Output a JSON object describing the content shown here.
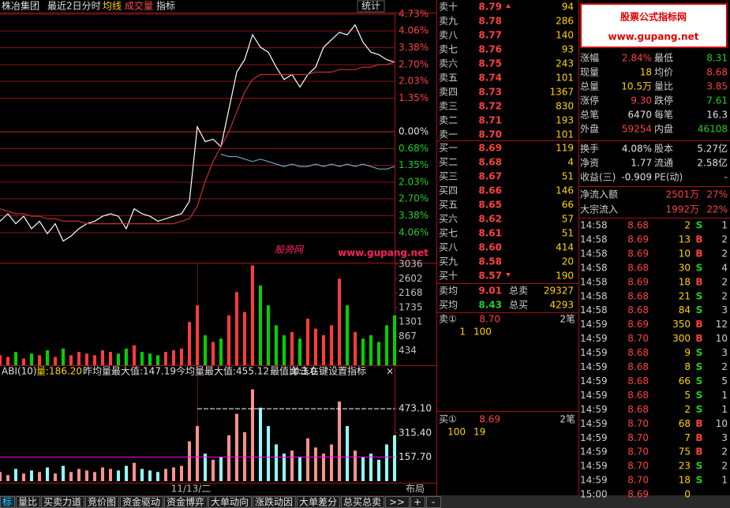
{
  "toolbar": {
    "stock": "株冶集团",
    "period": "最近2日分时",
    "avg_line": "均线",
    "volume": "成交量",
    "indicator": "指标",
    "stats": "统计",
    "layout": "布局"
  },
  "logo": {
    "title": "股票公式指标网",
    "url": "www.gupang.net"
  },
  "watermark": {
    "name": "股旁网",
    "url": "www.gupang.net"
  },
  "chart_data": [
    {
      "type": "line",
      "ylim": [
        -4.73,
        4.73
      ],
      "yticks": [
        {
          "value": 4.73,
          "label": "4.73%"
        },
        {
          "value": 4.06,
          "label": "4.06%"
        },
        {
          "value": 3.38,
          "label": "3.38%"
        },
        {
          "value": 2.7,
          "label": "2.70%"
        },
        {
          "value": 2.03,
          "label": "2.03%"
        },
        {
          "value": 1.35,
          "label": "1.35%"
        },
        {
          "value": 0,
          "label": "0.00%"
        },
        {
          "value": -0.68,
          "label": "0.68%"
        },
        {
          "value": -1.35,
          "label": "1.35%"
        },
        {
          "value": -2.03,
          "label": "2.03%"
        },
        {
          "value": -2.7,
          "label": "2.70%"
        },
        {
          "value": -3.38,
          "label": "3.38%"
        },
        {
          "value": -4.06,
          "label": "4.06%"
        }
      ],
      "grid": true,
      "series": [
        {
          "color": "#ffffff",
          "values": [
            -3.6,
            -3.3,
            -3.7,
            -3.4,
            -3.9,
            -3.6,
            -4.1,
            -3.7,
            -4.4,
            -4.2,
            -3.9,
            -3.7,
            -3.6,
            -3.4,
            -3.3,
            -3.4,
            -3.9,
            -3.1,
            -3.3,
            -3.4,
            -3.6,
            -3.5,
            -3.4,
            -3.3,
            -2.8,
            0.2,
            -0.4,
            -0.3,
            -0.6,
            0.9,
            2.4,
            2.9,
            3.9,
            3.4,
            3.2,
            2.6,
            2.1,
            2.3,
            1.8,
            2.3,
            2.6,
            3.4,
            3.7,
            4.0,
            3.9,
            4.3,
            3.6,
            3.2,
            3.1,
            2.9,
            2.8
          ]
        },
        {
          "color": "#c83030",
          "values": [
            -3.1,
            -3.2,
            -3.3,
            -3.3,
            -3.4,
            -3.4,
            -3.5,
            -3.5,
            -3.6,
            -3.6,
            -3.6,
            -3.7,
            -3.7,
            -3.7,
            -3.7,
            -3.7,
            -3.7,
            -3.7,
            -3.7,
            -3.7,
            -3.7,
            -3.7,
            -3.7,
            -3.6,
            -3.5,
            -3.0,
            -2.0,
            -1.2,
            -0.6,
            0.0,
            0.8,
            1.6,
            2.1,
            2.3,
            2.3,
            2.3,
            2.3,
            2.3,
            2.3,
            2.3,
            2.4,
            2.4,
            2.4,
            2.5,
            2.5,
            2.5,
            2.6,
            2.6,
            2.7,
            2.7,
            2.8
          ]
        },
        {
          "color": "#5fa8c8",
          "values": [
            null,
            null,
            null,
            null,
            null,
            null,
            null,
            null,
            null,
            null,
            null,
            null,
            null,
            null,
            null,
            null,
            null,
            null,
            null,
            null,
            null,
            null,
            null,
            null,
            null,
            null,
            null,
            null,
            -0.9,
            -1.0,
            -1.0,
            -1.1,
            -1.2,
            -1.1,
            -1.2,
            -1.3,
            -1.4,
            -1.3,
            -1.4,
            -1.4,
            -1.3,
            -1.4,
            -1.3,
            -1.4,
            -1.3,
            -1.4,
            -1.3,
            -1.4,
            -1.5,
            -1.5,
            -1.4
          ]
        }
      ]
    },
    {
      "type": "bar",
      "ylim": [
        0,
        3036
      ],
      "yticks": [
        434,
        867,
        1301,
        1735,
        2168,
        2602,
        3036
      ],
      "up_color": "#ff3c3c",
      "down_color": "#00d200",
      "values": [
        300,
        250,
        400,
        200,
        350,
        300,
        450,
        250,
        500,
        300,
        400,
        350,
        300,
        450,
        400,
        350,
        500,
        600,
        400,
        350,
        300,
        400,
        450,
        500,
        1300,
        1800,
        900,
        700,
        800,
        1500,
        2200,
        1600,
        3000,
        2400,
        1800,
        1200,
        900,
        1000,
        800,
        1400,
        1100,
        900,
        1200,
        2600,
        1800,
        1000,
        800,
        900,
        700,
        1200,
        1500
      ]
    },
    {
      "type": "bar",
      "title": "ABI(10)",
      "annotations": [
        "量:186.20",
        "昨均量最大值:147.19",
        "今均量最大值:455.12",
        "最值比:3.0"
      ],
      "hint": "单击右键设置指标",
      "close": "×",
      "x_label": "11/13/二",
      "ylim": [
        0,
        680
      ],
      "yticks": [
        {
          "value": 157.7,
          "label": "157.70"
        },
        {
          "value": 315.4,
          "label": "315.40"
        },
        {
          "value": 473.1,
          "label": "473.10"
        }
      ],
      "up_color": "#ff9090",
      "down_color": "#90ffff",
      "values": [
        60,
        40,
        80,
        50,
        70,
        60,
        90,
        50,
        100,
        60,
        80,
        70,
        60,
        90,
        80,
        70,
        100,
        120,
        80,
        70,
        60,
        80,
        90,
        100,
        260,
        360,
        180,
        140,
        160,
        300,
        440,
        320,
        600,
        480,
        360,
        240,
        180,
        200,
        160,
        280,
        220,
        180,
        240,
        520,
        360,
        200,
        160,
        180,
        140,
        240,
        300
      ]
    }
  ],
  "order_book": {
    "sells": [
      [
        "卖十",
        "8.79",
        "94"
      ],
      [
        "卖九",
        "8.78",
        "286"
      ],
      [
        "卖八",
        "8.77",
        "140"
      ],
      [
        "卖七",
        "8.76",
        "93"
      ],
      [
        "卖六",
        "8.75",
        "243"
      ],
      [
        "卖五",
        "8.74",
        "101"
      ],
      [
        "卖四",
        "8.73",
        "1367"
      ],
      [
        "卖三",
        "8.72",
        "830"
      ],
      [
        "卖二",
        "8.71",
        "193"
      ],
      [
        "卖一",
        "8.70",
        "101"
      ]
    ],
    "buys": [
      [
        "买一",
        "8.69",
        "119"
      ],
      [
        "买二",
        "8.68",
        "4"
      ],
      [
        "买三",
        "8.67",
        "51"
      ],
      [
        "买四",
        "8.66",
        "146"
      ],
      [
        "买五",
        "8.65",
        "66"
      ],
      [
        "买六",
        "8.62",
        "57"
      ],
      [
        "买七",
        "8.61",
        "51"
      ],
      [
        "买八",
        "8.60",
        "414"
      ],
      [
        "买九",
        "8.58",
        "20"
      ],
      [
        "买十",
        "8.57",
        "190"
      ]
    ],
    "summary": [
      [
        "卖均",
        "9.01",
        "总卖",
        "29327"
      ],
      [
        "买均",
        "8.43",
        "总买",
        "4293"
      ]
    ],
    "queue_sell": {
      "label": "卖①",
      "price": "8.70",
      "count": "2笔",
      "orders": [
        "1",
        "100"
      ]
    },
    "queue_buy": {
      "label": "买①",
      "price": "8.69",
      "count": "2笔",
      "orders": [
        "100",
        "19"
      ]
    }
  },
  "quote": {
    "rows": [
      [
        "涨幅",
        "2.84%",
        "最低",
        "8.31"
      ],
      [
        "现量",
        "18",
        "均价",
        "8.68"
      ],
      [
        "总量",
        "10.5万",
        "量比",
        "3.85"
      ],
      [
        "涨停",
        "9.30",
        "跌停",
        "7.61"
      ],
      [
        "总笔",
        "6470",
        "每笔",
        "16.3"
      ],
      [
        "外盘",
        "59254",
        "内盘",
        "46108"
      ]
    ],
    "info": [
      [
        "换手",
        "4.08%",
        "股本",
        "5.27亿"
      ],
      [
        "净资",
        "1.77",
        "流通",
        "2.58亿"
      ],
      [
        "收益(三)",
        "-0.909",
        "PE(动)",
        "-"
      ]
    ],
    "flows": [
      [
        "净流入额",
        "2501万",
        "27%"
      ],
      [
        "大宗流入",
        "1992万",
        "22%"
      ]
    ]
  },
  "trades": [
    [
      "14:58",
      "8.68",
      "2",
      "S",
      "1"
    ],
    [
      "14:58",
      "8.69",
      "13",
      "B",
      "2"
    ],
    [
      "14:58",
      "8.69",
      "10",
      "B",
      "2"
    ],
    [
      "14:58",
      "8.68",
      "30",
      "S",
      "4"
    ],
    [
      "14:58",
      "8.69",
      "18",
      "B",
      "2"
    ],
    [
      "14:58",
      "8.68",
      "21",
      "S",
      "2"
    ],
    [
      "14:58",
      "8.68",
      "84",
      "S",
      "3"
    ],
    [
      "14:59",
      "8.69",
      "350",
      "B",
      "12"
    ],
    [
      "14:59",
      "8.70",
      "300",
      "B",
      "10"
    ],
    [
      "14:59",
      "8.68",
      "9",
      "S",
      "3"
    ],
    [
      "14:59",
      "8.68",
      "8",
      "S",
      "2"
    ],
    [
      "14:59",
      "8.68",
      "66",
      "S",
      "5"
    ],
    [
      "14:59",
      "8.68",
      "5",
      "S",
      "1"
    ],
    [
      "14:59",
      "8.68",
      "2",
      "S",
      "1"
    ],
    [
      "14:59",
      "8.70",
      "68",
      "B",
      "10"
    ],
    [
      "14:59",
      "8.70",
      "7",
      "B",
      "3"
    ],
    [
      "14:59",
      "8.70",
      "75",
      "B",
      "2"
    ],
    [
      "14:59",
      "8.70",
      "23",
      "S",
      "2"
    ],
    [
      "14:59",
      "8.70",
      "18",
      "S",
      "1"
    ],
    [
      "15:00",
      "8.69",
      "0"
    ]
  ],
  "tabs": [
    "标",
    "量比",
    "买卖力道",
    "竞价图",
    "资金驱动",
    "资金博弈",
    "大单动向",
    "涨跌动因",
    "大单差分",
    "总买总卖",
    ">>",
    "+",
    "-"
  ]
}
